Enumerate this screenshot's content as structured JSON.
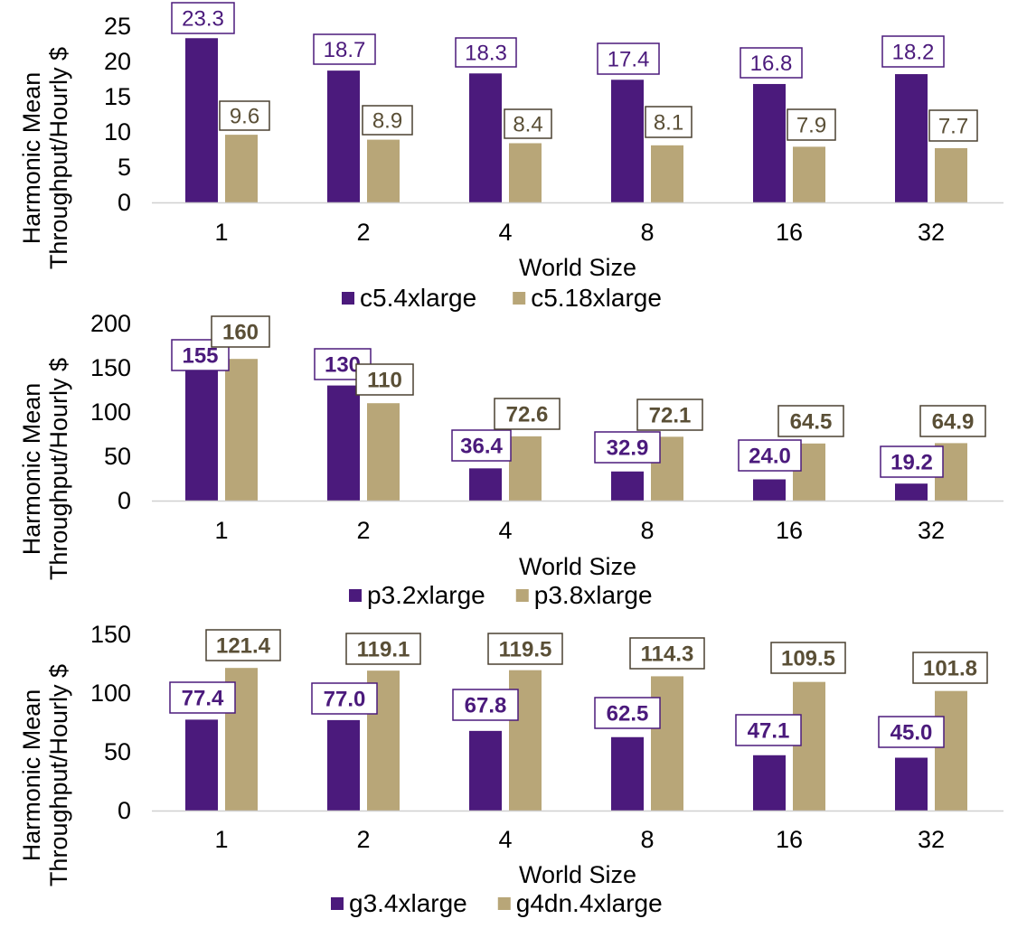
{
  "chart_data": [
    {
      "type": "bar",
      "categories": [
        "1",
        "2",
        "4",
        "8",
        "16",
        "32"
      ],
      "series": [
        {
          "name": "c5.4xlarge",
          "values": [
            23.3,
            18.7,
            18.3,
            17.4,
            16.8,
            18.2
          ],
          "labels": [
            "23.3",
            "18.7",
            "18.3",
            "17.4",
            "16.8",
            "18.2"
          ],
          "color": "#4b1a7c"
        },
        {
          "name": "c5.18xlarge",
          "values": [
            9.6,
            8.9,
            8.4,
            8.1,
            7.9,
            7.7
          ],
          "labels": [
            "9.6",
            "8.9",
            "8.4",
            "8.1",
            "7.9",
            "7.7"
          ],
          "color": "#b8a678"
        }
      ],
      "xlabel": "World Size",
      "ylabel": [
        "Harmonic Mean",
        "Throughput/Hourly $"
      ],
      "ylim": [
        0,
        25
      ],
      "yticks": [
        0,
        5,
        10,
        15,
        20,
        25
      ],
      "grid": false,
      "legend": "bottom",
      "label_style": "normal"
    },
    {
      "type": "bar",
      "categories": [
        "1",
        "2",
        "4",
        "8",
        "16",
        "32"
      ],
      "series": [
        {
          "name": "p3.2xlarge",
          "values": [
            155,
            130,
            36.4,
            32.9,
            24.0,
            19.2
          ],
          "labels": [
            "155",
            "130",
            "36.4",
            "32.9",
            "24.0",
            "19.2"
          ],
          "color": "#4b1a7c"
        },
        {
          "name": "p3.8xlarge",
          "values": [
            160,
            110,
            72.6,
            72.1,
            64.5,
            64.9
          ],
          "labels": [
            "160",
            "110",
            "72.6",
            "72.1",
            "64.5",
            "64.9"
          ],
          "color": "#b8a678"
        }
      ],
      "xlabel": "World Size",
      "ylabel": [
        "Harmonic Mean",
        "Throughput/Hourly $"
      ],
      "ylim": [
        0,
        200
      ],
      "yticks": [
        0,
        50,
        100,
        150,
        200
      ],
      "grid": false,
      "legend": "bottom",
      "label_style": "bold"
    },
    {
      "type": "bar",
      "categories": [
        "1",
        "2",
        "4",
        "8",
        "16",
        "32"
      ],
      "series": [
        {
          "name": "g3.4xlarge",
          "values": [
            77.4,
            77.0,
            67.8,
            62.5,
            47.1,
            45.0
          ],
          "labels": [
            "77.4",
            "77.0",
            "67.8",
            "62.5",
            "47.1",
            "45.0"
          ],
          "color": "#4b1a7c"
        },
        {
          "name": "g4dn.4xlarge",
          "values": [
            121.4,
            119.1,
            119.5,
            114.3,
            109.5,
            101.8
          ],
          "labels": [
            "121.4",
            "119.1",
            "119.5",
            "114.3",
            "109.5",
            "101.8"
          ],
          "color": "#b8a678"
        }
      ],
      "xlabel": "World Size",
      "ylabel": [
        "Harmonic Mean",
        "Throughput/Hourly $"
      ],
      "ylim": [
        0,
        150
      ],
      "yticks": [
        0,
        50,
        100,
        150
      ],
      "grid": false,
      "legend": "bottom",
      "label_style": "bold"
    }
  ]
}
